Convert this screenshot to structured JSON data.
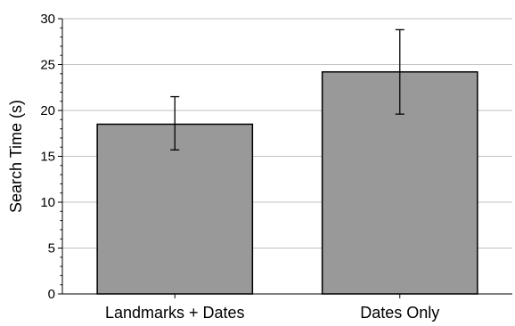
{
  "chart_data": {
    "type": "bar",
    "title": "",
    "xlabel": "",
    "ylabel": "Search Time (s)",
    "categories": [
      "Landmarks + Dates",
      "Dates Only"
    ],
    "values": [
      18.5,
      24.2
    ],
    "error_low": [
      15.7,
      19.6
    ],
    "error_high": [
      21.5,
      28.8
    ],
    "ylim": [
      0,
      30
    ],
    "yticks": [
      0,
      5,
      10,
      15,
      20,
      25,
      30
    ],
    "grid": true,
    "bar_color": "#999999",
    "grid_color": "#c0c0c0"
  }
}
